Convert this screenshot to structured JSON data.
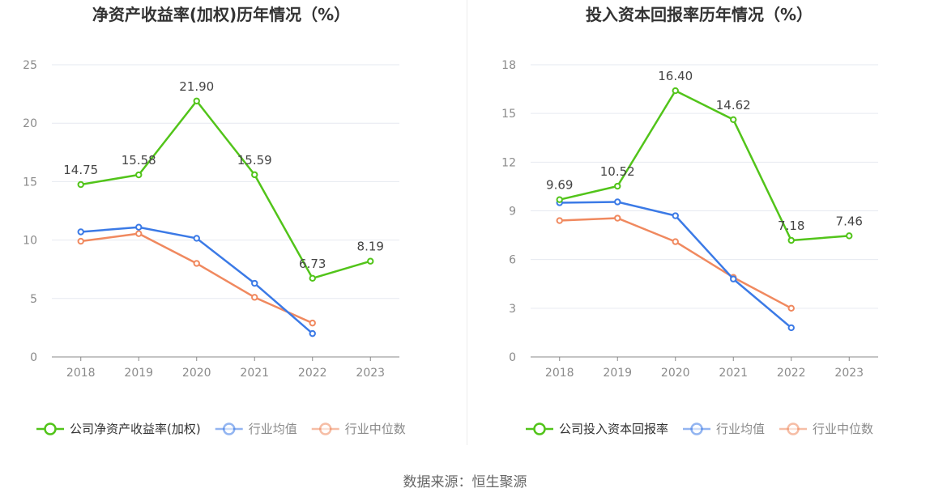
{
  "source_label": "数据来源：恒生聚源",
  "colors": {
    "company": "#52c41a",
    "avg": "#3b7ae6",
    "median": "#f0895f",
    "grid": "#e6e9f0",
    "axis": "#888888"
  },
  "chart_data": [
    {
      "type": "line",
      "title": "净资产收益率(加权)历年情况（%）",
      "x": [
        "2018",
        "2019",
        "2020",
        "2021",
        "2022",
        "2023"
      ],
      "ylim": [
        0,
        25
      ],
      "yticks": [
        "0",
        "5",
        "10",
        "15",
        "20",
        "25"
      ],
      "grid": true,
      "legend_position": "bottom",
      "series": [
        {
          "name": "公司净资产收益率(加权)",
          "values": [
            14.75,
            15.58,
            21.9,
            15.59,
            6.73,
            8.19
          ],
          "labels": [
            "14.75",
            "15.58",
            "21.90",
            "15.59",
            "6.73",
            "8.19"
          ]
        },
        {
          "name": "行业均值",
          "values": [
            10.7,
            11.1,
            10.15,
            6.3,
            2.0,
            null
          ]
        },
        {
          "name": "行业中位数",
          "values": [
            9.9,
            10.55,
            8.0,
            5.1,
            2.9,
            null
          ]
        }
      ]
    },
    {
      "type": "line",
      "title": "投入资本回报率历年情况（%）",
      "x": [
        "2018",
        "2019",
        "2020",
        "2021",
        "2022",
        "2023"
      ],
      "ylim": [
        0,
        18
      ],
      "yticks": [
        "0",
        "3",
        "6",
        "9",
        "12",
        "15",
        "18"
      ],
      "grid": true,
      "legend_position": "bottom",
      "series": [
        {
          "name": "公司投入资本回报率",
          "values": [
            9.69,
            10.52,
            16.4,
            14.62,
            7.18,
            7.46
          ],
          "labels": [
            "9.69",
            "10.52",
            "16.40",
            "14.62",
            "7.18",
            "7.46"
          ]
        },
        {
          "name": "行业均值",
          "values": [
            9.5,
            9.55,
            8.7,
            4.8,
            1.8,
            null
          ]
        },
        {
          "name": "行业中位数",
          "values": [
            8.4,
            8.55,
            7.1,
            4.9,
            3.0,
            null
          ]
        }
      ]
    }
  ]
}
